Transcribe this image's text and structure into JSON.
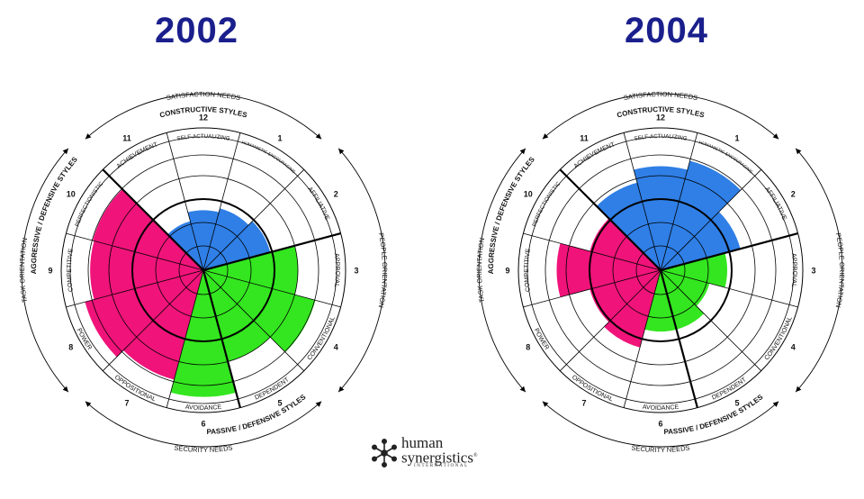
{
  "colors": {
    "constructive": "#2f7fe6",
    "passive_defensive": "#33e61f",
    "aggressive_defensive": "#f0137a",
    "title": "#1a1f8c",
    "line": "#000000"
  },
  "labels": {
    "satisfaction_needs": "SATISFACTION NEEDS",
    "security_needs": "SECURITY NEEDS",
    "task_orientation": "TASK ORIENTATION",
    "people_orientation": "PEOPLE ORIENTATION",
    "constructive_styles": "CONSTRUCTIVE STYLES",
    "passive_defensive_styles": "PASSIVE / DEFENSIVE STYLES",
    "aggressive_defensive_styles": "AGGRESSIVE / DEFENSIVE STYLES"
  },
  "logo": {
    "line1": "human",
    "line2": "synergistics",
    "registered": "®",
    "sub": "INTERNATIONAL",
    "icon": "snowflake-logo-icon"
  },
  "chart_data": [
    {
      "type": "circumplex",
      "title": "2002",
      "scale": [
        0,
        100
      ],
      "ring_percentiles": [
        0,
        10,
        25,
        50,
        75,
        90,
        99
      ],
      "styles": [
        {
          "num": "1",
          "name": "HUMANISTIC-ENCOURAGING",
          "cluster": "constructive",
          "value": 48
        },
        {
          "num": "2",
          "name": "AFFILIATIVE",
          "cluster": "constructive",
          "value": 52
        },
        {
          "num": "3",
          "name": "APPROVAL",
          "cluster": "passive_defensive",
          "value": 71
        },
        {
          "num": "4",
          "name": "CONVENTIONAL",
          "cluster": "passive_defensive",
          "value": 87
        },
        {
          "num": "5",
          "name": "DEPENDENT",
          "cluster": "passive_defensive",
          "value": 71
        },
        {
          "num": "6",
          "name": "AVOIDANCE",
          "cluster": "passive_defensive",
          "value": 95
        },
        {
          "num": "7",
          "name": "OPPOSITIONAL",
          "cluster": "aggressive_defensive",
          "value": 85
        },
        {
          "num": "8",
          "name": "POWER",
          "cluster": "aggressive_defensive",
          "value": 92
        },
        {
          "num": "9",
          "name": "COMPETITIVE",
          "cluster": "aggressive_defensive",
          "value": 85
        },
        {
          "num": "10",
          "name": "PERFECTIONISTIC",
          "cluster": "aggressive_defensive",
          "value": 86
        },
        {
          "num": "11",
          "name": "ACHIEVEMENT",
          "cluster": "constructive",
          "value": 38
        },
        {
          "num": "12",
          "name": "SELF-ACTUALIZING",
          "cluster": "constructive",
          "value": 45
        }
      ]
    },
    {
      "type": "circumplex",
      "title": "2004",
      "scale": [
        0,
        100
      ],
      "ring_percentiles": [
        0,
        10,
        25,
        50,
        75,
        90,
        99
      ],
      "styles": [
        {
          "num": "1",
          "name": "HUMANISTIC-ENCOURAGING",
          "cluster": "constructive",
          "value": 85
        },
        {
          "num": "2",
          "name": "AFFILIATIVE",
          "cluster": "constructive",
          "value": 62
        },
        {
          "num": "3",
          "name": "APPROVAL",
          "cluster": "passive_defensive",
          "value": 50
        },
        {
          "num": "4",
          "name": "CONVENTIONAL",
          "cluster": "passive_defensive",
          "value": 38
        },
        {
          "num": "5",
          "name": "DEPENDENT",
          "cluster": "passive_defensive",
          "value": 46
        },
        {
          "num": "6",
          "name": "AVOIDANCE",
          "cluster": "passive_defensive",
          "value": 46
        },
        {
          "num": "7",
          "name": "OPPOSITIONAL",
          "cluster": "aggressive_defensive",
          "value": 60
        },
        {
          "num": "8",
          "name": "POWER",
          "cluster": "aggressive_defensive",
          "value": 55
        },
        {
          "num": "9",
          "name": "COMPETITIVE",
          "cluster": "aggressive_defensive",
          "value": 78
        },
        {
          "num": "10",
          "name": "PERFECTIONISTIC",
          "cluster": "aggressive_defensive",
          "value": 55
        },
        {
          "num": "11",
          "name": "ACHIEVEMENT",
          "cluster": "constructive",
          "value": 68
        },
        {
          "num": "12",
          "name": "SELF-ACTUALIZING",
          "cluster": "constructive",
          "value": 78
        }
      ]
    }
  ]
}
